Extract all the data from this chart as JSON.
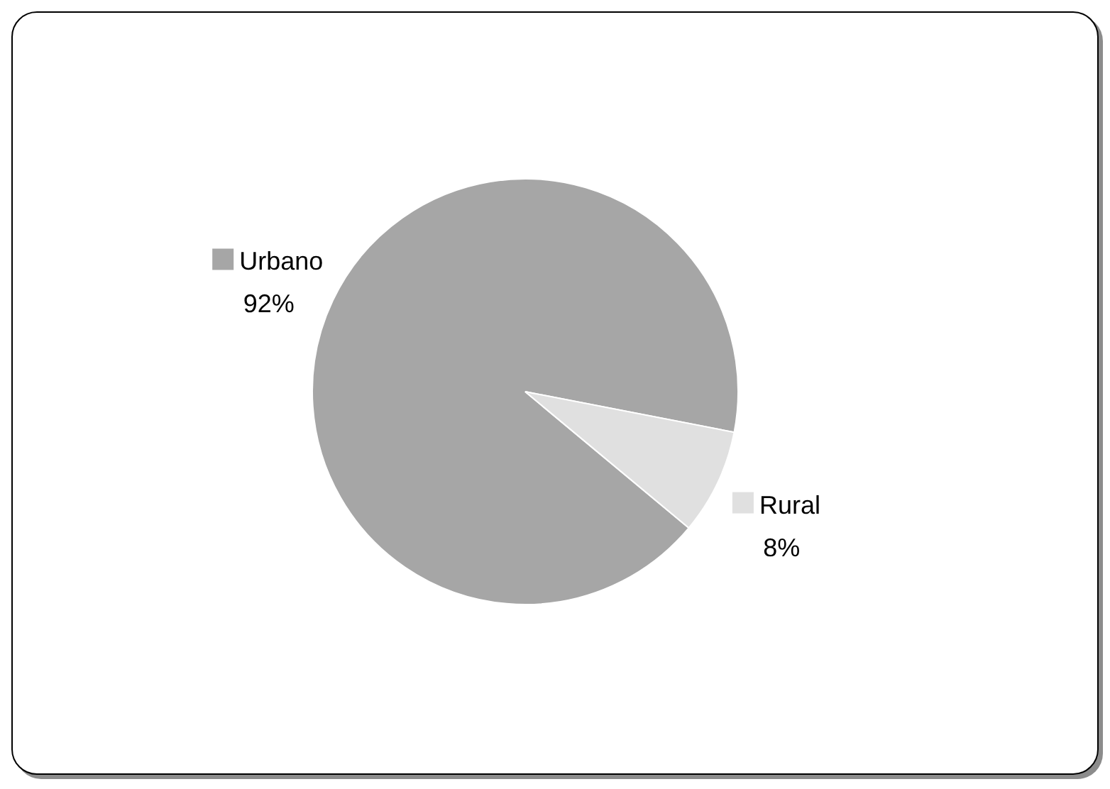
{
  "chart_data": {
    "type": "pie",
    "categories": [
      "Urbano",
      "Rural"
    ],
    "values": [
      92,
      8
    ],
    "value_labels": [
      "92%",
      "8%"
    ],
    "colors": [
      "#a6a6a6",
      "#e0e0e0"
    ],
    "legend": "right"
  }
}
